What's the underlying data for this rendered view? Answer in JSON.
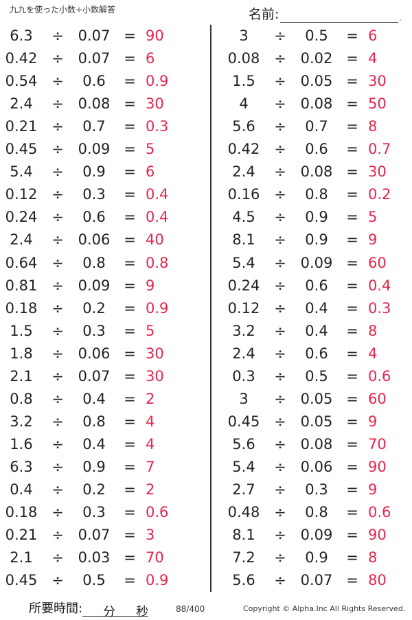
{
  "header": {
    "title": "九九を使った小数÷小数解答",
    "name_label": "名前:",
    "name_dot": "."
  },
  "operator": "÷",
  "equals": "=",
  "left_column": [
    {
      "a": "6.3",
      "b": "0.07",
      "ans": "90"
    },
    {
      "a": "0.42",
      "b": "0.07",
      "ans": "6"
    },
    {
      "a": "0.54",
      "b": "0.6",
      "ans": "0.9"
    },
    {
      "a": "2.4",
      "b": "0.08",
      "ans": "30"
    },
    {
      "a": "0.21",
      "b": "0.7",
      "ans": "0.3"
    },
    {
      "a": "0.45",
      "b": "0.09",
      "ans": "5"
    },
    {
      "a": "5.4",
      "b": "0.9",
      "ans": "6"
    },
    {
      "a": "0.12",
      "b": "0.3",
      "ans": "0.4"
    },
    {
      "a": "0.24",
      "b": "0.6",
      "ans": "0.4"
    },
    {
      "a": "2.4",
      "b": "0.06",
      "ans": "40"
    },
    {
      "a": "0.64",
      "b": "0.8",
      "ans": "0.8"
    },
    {
      "a": "0.81",
      "b": "0.09",
      "ans": "9"
    },
    {
      "a": "0.18",
      "b": "0.2",
      "ans": "0.9"
    },
    {
      "a": "1.5",
      "b": "0.3",
      "ans": "5"
    },
    {
      "a": "1.8",
      "b": "0.06",
      "ans": "30"
    },
    {
      "a": "2.1",
      "b": "0.07",
      "ans": "30"
    },
    {
      "a": "0.8",
      "b": "0.4",
      "ans": "2"
    },
    {
      "a": "3.2",
      "b": "0.8",
      "ans": "4"
    },
    {
      "a": "1.6",
      "b": "0.4",
      "ans": "4"
    },
    {
      "a": "6.3",
      "b": "0.9",
      "ans": "7"
    },
    {
      "a": "0.4",
      "b": "0.2",
      "ans": "2"
    },
    {
      "a": "0.18",
      "b": "0.3",
      "ans": "0.6"
    },
    {
      "a": "0.21",
      "b": "0.07",
      "ans": "3"
    },
    {
      "a": "2.1",
      "b": "0.03",
      "ans": "70"
    },
    {
      "a": "0.45",
      "b": "0.5",
      "ans": "0.9"
    }
  ],
  "right_column": [
    {
      "a": "3",
      "b": "0.5",
      "ans": "6"
    },
    {
      "a": "0.08",
      "b": "0.02",
      "ans": "4"
    },
    {
      "a": "1.5",
      "b": "0.05",
      "ans": "30"
    },
    {
      "a": "4",
      "b": "0.08",
      "ans": "50"
    },
    {
      "a": "5.6",
      "b": "0.7",
      "ans": "8"
    },
    {
      "a": "0.42",
      "b": "0.6",
      "ans": "0.7"
    },
    {
      "a": "2.4",
      "b": "0.08",
      "ans": "30"
    },
    {
      "a": "0.16",
      "b": "0.8",
      "ans": "0.2"
    },
    {
      "a": "4.5",
      "b": "0.9",
      "ans": "5"
    },
    {
      "a": "8.1",
      "b": "0.9",
      "ans": "9"
    },
    {
      "a": "5.4",
      "b": "0.09",
      "ans": "60"
    },
    {
      "a": "0.24",
      "b": "0.6",
      "ans": "0.4"
    },
    {
      "a": "0.12",
      "b": "0.4",
      "ans": "0.3"
    },
    {
      "a": "3.2",
      "b": "0.4",
      "ans": "8"
    },
    {
      "a": "2.4",
      "b": "0.6",
      "ans": "4"
    },
    {
      "a": "0.3",
      "b": "0.5",
      "ans": "0.6"
    },
    {
      "a": "3",
      "b": "0.05",
      "ans": "60"
    },
    {
      "a": "0.45",
      "b": "0.05",
      "ans": "9"
    },
    {
      "a": "5.6",
      "b": "0.08",
      "ans": "70"
    },
    {
      "a": "5.4",
      "b": "0.06",
      "ans": "90"
    },
    {
      "a": "2.7",
      "b": "0.3",
      "ans": "9"
    },
    {
      "a": "0.48",
      "b": "0.8",
      "ans": "0.6"
    },
    {
      "a": "8.1",
      "b": "0.09",
      "ans": "90"
    },
    {
      "a": "7.2",
      "b": "0.9",
      "ans": "8"
    },
    {
      "a": "5.6",
      "b": "0.07",
      "ans": "80"
    }
  ],
  "footer": {
    "time_label": "所要時間:",
    "minutes_unit": "分",
    "seconds_unit": "秒",
    "page_number": "88/400",
    "copyright": "Copyright © Alpha.Inc All Rights Reserved."
  },
  "colors": {
    "answer": "#e6264d",
    "text": "#222222"
  }
}
